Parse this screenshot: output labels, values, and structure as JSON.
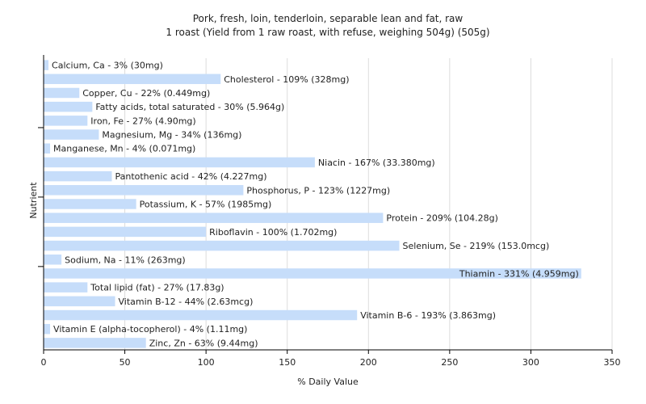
{
  "chart_data": {
    "type": "bar",
    "orientation": "horizontal",
    "title": "Pork, fresh, loin, tenderloin, separable lean and fat, raw",
    "subtitle": "1 roast (Yield from 1 raw roast, with refuse, weighing 504g) (505g)",
    "xlabel": "% Daily Value",
    "ylabel": "Nutrient",
    "xlim": [
      0,
      350
    ],
    "xticks": [
      "0",
      "50",
      "100",
      "150",
      "200",
      "250",
      "300",
      "350"
    ],
    "grid": true,
    "bar_color": "#c6ddfa",
    "categories": [
      "Calcium, Ca",
      "Cholesterol",
      "Copper, Cu",
      "Fatty acids, total saturated",
      "Iron, Fe",
      "Magnesium, Mg",
      "Manganese, Mn",
      "Niacin",
      "Pantothenic acid",
      "Phosphorus, P",
      "Potassium, K",
      "Protein",
      "Riboflavin",
      "Selenium, Se",
      "Sodium, Na",
      "Thiamin",
      "Total lipid (fat)",
      "Vitamin B-12",
      "Vitamin B-6",
      "Vitamin E (alpha-tocopherol)",
      "Zinc, Zn"
    ],
    "values": [
      3,
      109,
      22,
      30,
      27,
      34,
      4,
      167,
      42,
      123,
      57,
      209,
      100,
      219,
      11,
      331,
      27,
      44,
      193,
      4,
      63
    ],
    "labels": [
      "Calcium, Ca - 3% (30mg)",
      "Cholesterol - 109% (328mg)",
      "Copper, Cu - 22% (0.449mg)",
      "Fatty acids, total saturated - 30% (5.964g)",
      "Iron, Fe - 27% (4.90mg)",
      "Magnesium, Mg - 34% (136mg)",
      "Manganese, Mn - 4% (0.071mg)",
      "Niacin - 167% (33.380mg)",
      "Pantothenic acid - 42% (4.227mg)",
      "Phosphorus, P - 123% (1227mg)",
      "Potassium, K - 57% (1985mg)",
      "Protein - 209% (104.28g)",
      "Riboflavin - 100% (1.702mg)",
      "Selenium, Se - 219% (153.0mcg)",
      "Sodium, Na - 11% (263mg)",
      "Thiamin - 331% (4.959mg)",
      "Total lipid (fat) - 27% (17.83g)",
      "Vitamin B-12 - 44% (2.63mcg)",
      "Vitamin B-6 - 193% (3.863mg)",
      "Vitamin E (alpha-tocopherol) - 4% (1.11mg)",
      "Zinc, Zn - 63% (9.44mg)"
    ]
  }
}
